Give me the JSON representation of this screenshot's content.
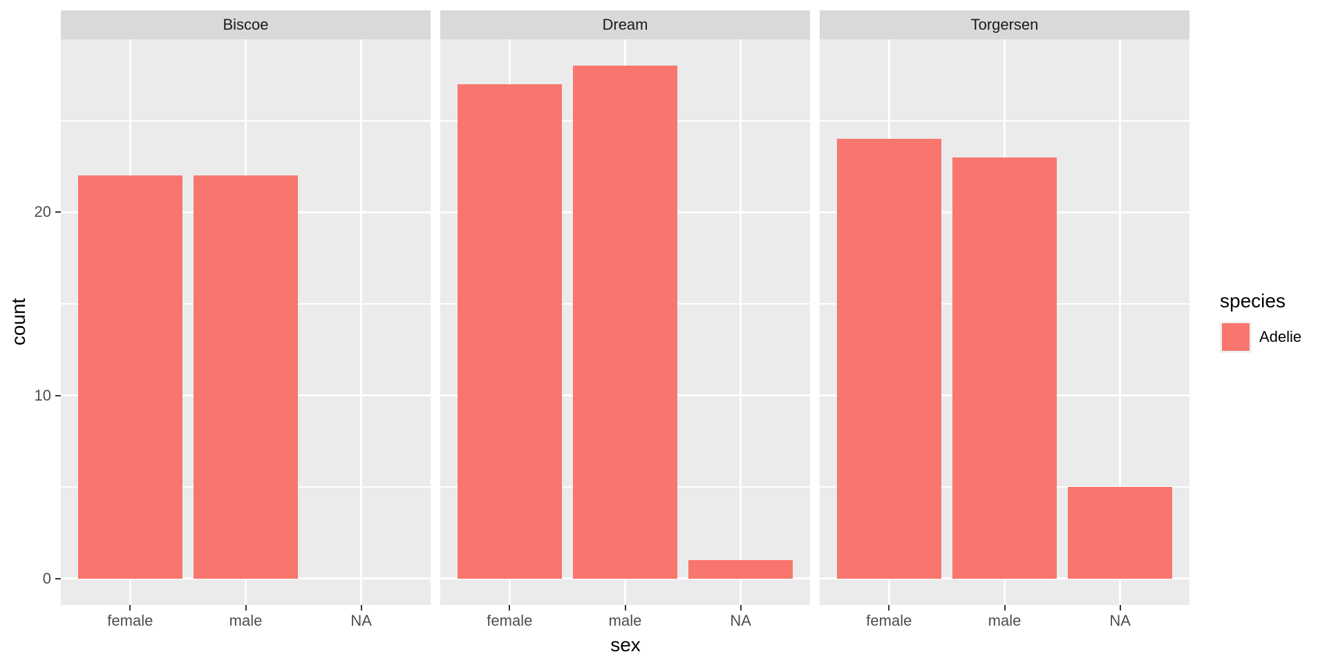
{
  "chart_data": {
    "type": "bar",
    "title": "",
    "xlabel": "sex",
    "ylabel": "count",
    "categories": [
      "female",
      "male",
      "NA"
    ],
    "facets": [
      {
        "label": "Biscoe",
        "series_name": "Adelie",
        "values": [
          22,
          22,
          0
        ]
      },
      {
        "label": "Dream",
        "series_name": "Adelie",
        "values": [
          27,
          28,
          1
        ]
      },
      {
        "label": "Torgersen",
        "series_name": "Adelie",
        "values": [
          24,
          23,
          5
        ]
      }
    ],
    "y_axis": {
      "ticks": [
        0,
        10,
        20
      ],
      "minor_ticks": [
        5,
        15,
        25
      ],
      "ylim": [
        -1.45,
        29.45
      ]
    },
    "grid": true,
    "legend": {
      "title": "species",
      "position": "right",
      "entries": [
        {
          "label": "Adelie",
          "color": "#F8766D"
        }
      ]
    },
    "colors": {
      "bar": "#F8766D",
      "panel_bg": "#EBEBEB",
      "strip_bg": "#D9D9D9",
      "gridline": "#FFFFFF",
      "tick_mark": "#333333",
      "tick_label": "#4D4D4D",
      "axis_title": "#000000",
      "legend_key_bg": "#F2F2F2"
    }
  }
}
